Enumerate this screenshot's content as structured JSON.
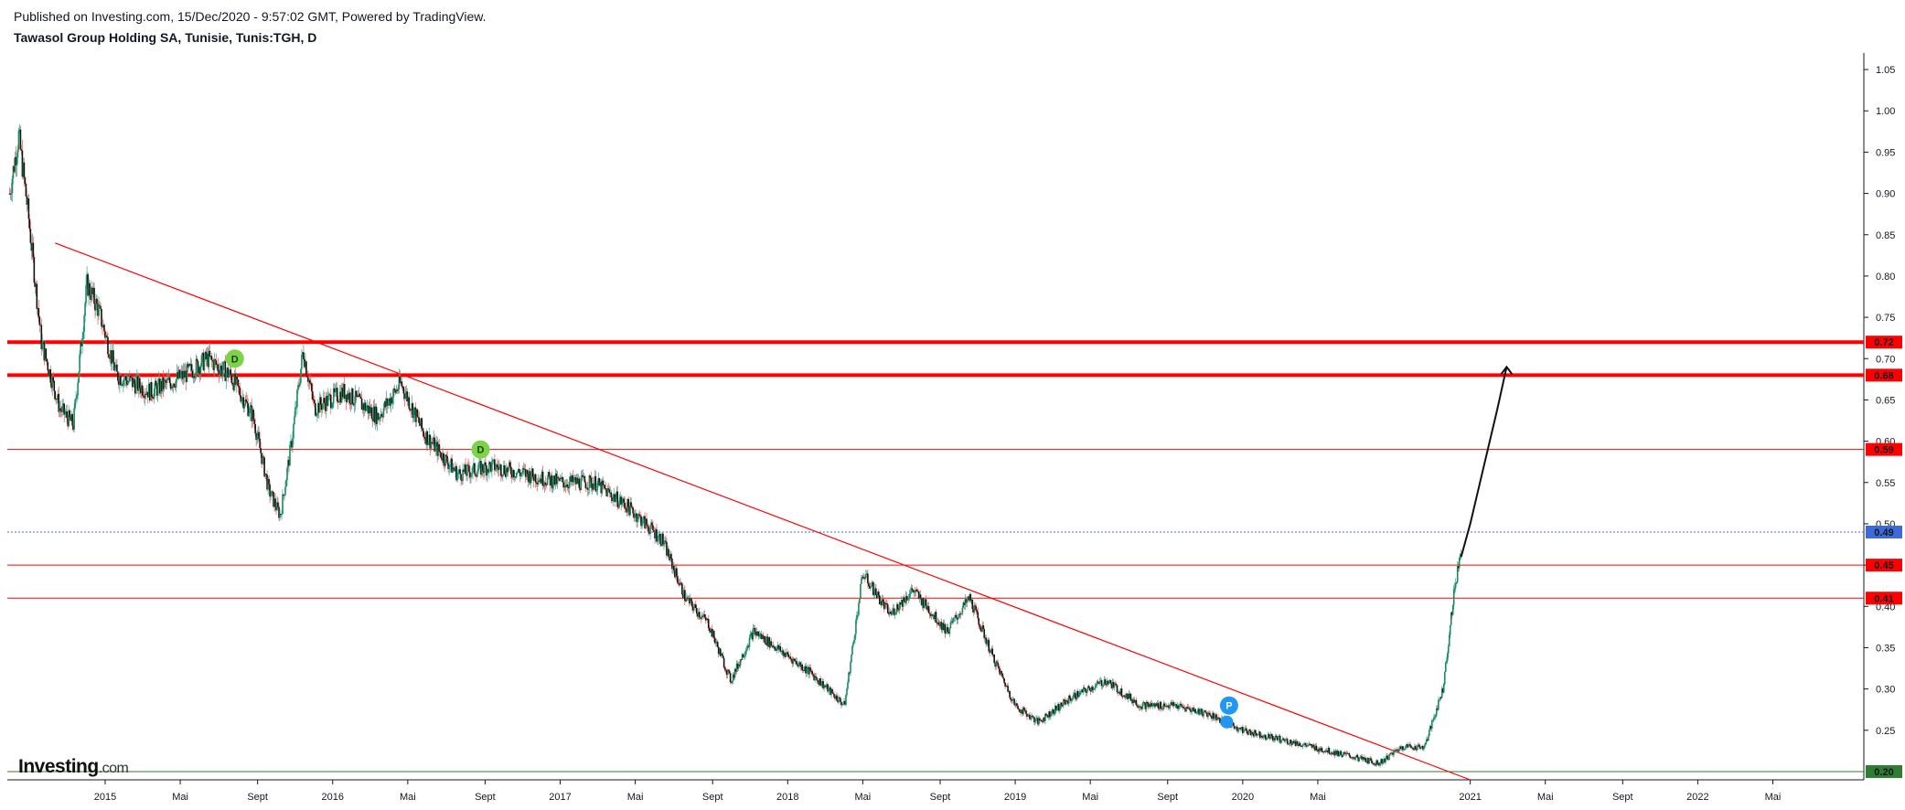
{
  "header": {
    "published": "Published on Investing.com, 15/Dec/2020 - 9:57:02 GMT, Powered by TradingView.",
    "title": "Tawasol Group Holding SA, Tunisie, Tunis:TGH, D"
  },
  "logo": {
    "name": "Investing",
    "suffix": ".com"
  },
  "colors": {
    "axis": "#131722",
    "resistance": "#ff0000",
    "support": "#2e7d32",
    "current": "#3c6bd8",
    "up": "#26a69a",
    "down": "#ef5350",
    "arrow": "#111111"
  },
  "chart_data": {
    "type": "candlestick",
    "symbol": "Tunis:TGH",
    "interval": "D",
    "ylim": [
      0.19,
      1.07
    ],
    "y_ticks": [
      "1.05",
      "1.00",
      "0.95",
      "0.90",
      "0.85",
      "0.80",
      "0.75",
      "0.70",
      "0.65",
      "0.60",
      "0.55",
      "0.50",
      "0.45",
      "0.40",
      "0.35",
      "0.30",
      "0.25"
    ],
    "x_ticks": [
      {
        "label": "2015",
        "t": 2015.0
      },
      {
        "label": "Mai",
        "t": 2015.33
      },
      {
        "label": "Sept",
        "t": 2015.67
      },
      {
        "label": "2016",
        "t": 2016.0
      },
      {
        "label": "Mai",
        "t": 2016.33
      },
      {
        "label": "Sept",
        "t": 2016.67
      },
      {
        "label": "2017",
        "t": 2017.0
      },
      {
        "label": "Mai",
        "t": 2017.33
      },
      {
        "label": "Sept",
        "t": 2017.67
      },
      {
        "label": "2018",
        "t": 2018.0
      },
      {
        "label": "Mai",
        "t": 2018.33
      },
      {
        "label": "Sept",
        "t": 2018.67
      },
      {
        "label": "2019",
        "t": 2019.0
      },
      {
        "label": "Mai",
        "t": 2019.33
      },
      {
        "label": "Sept",
        "t": 2019.67
      },
      {
        "label": "2020",
        "t": 2020.0
      },
      {
        "label": "Mai",
        "t": 2020.33
      },
      {
        "label": "2021",
        "t": 2021.0
      },
      {
        "label": "Mai",
        "t": 2021.33
      },
      {
        "label": "Sept",
        "t": 2021.67
      },
      {
        "label": "2022",
        "t": 2022.0
      },
      {
        "label": "Mai",
        "t": 2022.33
      }
    ],
    "price_path": [
      [
        2014.58,
        0.9
      ],
      [
        2014.62,
        0.97
      ],
      [
        2014.66,
        0.88
      ],
      [
        2014.72,
        0.72
      ],
      [
        2014.8,
        0.64
      ],
      [
        2014.86,
        0.62
      ],
      [
        2014.92,
        0.79
      ],
      [
        2014.97,
        0.76
      ],
      [
        2015.05,
        0.68
      ],
      [
        2015.2,
        0.66
      ],
      [
        2015.35,
        0.68
      ],
      [
        2015.45,
        0.7
      ],
      [
        2015.55,
        0.68
      ],
      [
        2015.65,
        0.63
      ],
      [
        2015.72,
        0.54
      ],
      [
        2015.77,
        0.51
      ],
      [
        2015.82,
        0.6
      ],
      [
        2015.87,
        0.71
      ],
      [
        2015.92,
        0.64
      ],
      [
        2016.05,
        0.66
      ],
      [
        2016.2,
        0.63
      ],
      [
        2016.3,
        0.67
      ],
      [
        2016.4,
        0.61
      ],
      [
        2016.55,
        0.56
      ],
      [
        2016.7,
        0.57
      ],
      [
        2016.85,
        0.56
      ],
      [
        2017.0,
        0.55
      ],
      [
        2017.15,
        0.55
      ],
      [
        2017.3,
        0.52
      ],
      [
        2017.45,
        0.48
      ],
      [
        2017.55,
        0.41
      ],
      [
        2017.65,
        0.38
      ],
      [
        2017.75,
        0.31
      ],
      [
        2017.85,
        0.37
      ],
      [
        2017.95,
        0.35
      ],
      [
        2018.1,
        0.32
      ],
      [
        2018.25,
        0.28
      ],
      [
        2018.33,
        0.44
      ],
      [
        2018.45,
        0.39
      ],
      [
        2018.55,
        0.42
      ],
      [
        2018.7,
        0.37
      ],
      [
        2018.8,
        0.41
      ],
      [
        2018.9,
        0.34
      ],
      [
        2019.0,
        0.28
      ],
      [
        2019.1,
        0.26
      ],
      [
        2019.25,
        0.29
      ],
      [
        2019.4,
        0.31
      ],
      [
        2019.55,
        0.28
      ],
      [
        2019.7,
        0.28
      ],
      [
        2019.85,
        0.27
      ],
      [
        2020.0,
        0.25
      ],
      [
        2020.15,
        0.24
      ],
      [
        2020.3,
        0.23
      ],
      [
        2020.45,
        0.22
      ],
      [
        2020.6,
        0.21
      ],
      [
        2020.7,
        0.23
      ],
      [
        2020.8,
        0.23
      ],
      [
        2020.88,
        0.3
      ],
      [
        2020.93,
        0.42
      ],
      [
        2020.96,
        0.47
      ]
    ],
    "levels": [
      {
        "value": 0.72,
        "label": "0.72",
        "color": "#ff0000",
        "style": "thick"
      },
      {
        "value": 0.68,
        "label": "0.68",
        "color": "#ff0000",
        "style": "thick"
      },
      {
        "value": 0.59,
        "label": "0.59",
        "color": "#ff0000",
        "style": "thin"
      },
      {
        "value": 0.49,
        "label": "0.49",
        "color": "#3c6bd8",
        "style": "dotted"
      },
      {
        "value": 0.45,
        "label": "0.45",
        "color": "#ff0000",
        "style": "thin"
      },
      {
        "value": 0.41,
        "label": "0.41",
        "color": "#ff0000",
        "style": "thin"
      },
      {
        "value": 0.2,
        "label": "0.20",
        "color": "#2e7d32",
        "style": "thin"
      }
    ],
    "trendline": {
      "t1": 2014.78,
      "p1": 0.84,
      "t2": 2021.0,
      "p2": 0.19
    },
    "projection": [
      [
        2020.96,
        0.46
      ],
      [
        2021.0,
        0.5
      ],
      [
        2021.06,
        0.57
      ],
      [
        2021.12,
        0.64
      ],
      [
        2021.16,
        0.69
      ]
    ],
    "markers": [
      {
        "t": 2015.57,
        "p": 0.7,
        "label": "D",
        "color": "#7cd34a"
      },
      {
        "t": 2016.65,
        "p": 0.59,
        "label": "D",
        "color": "#7cd34a"
      },
      {
        "t": 2019.94,
        "p": 0.28,
        "label": "P",
        "color": "#2196f3"
      },
      {
        "t": 2019.93,
        "p": 0.26,
        "label": "",
        "color": "#2196f3"
      }
    ]
  }
}
